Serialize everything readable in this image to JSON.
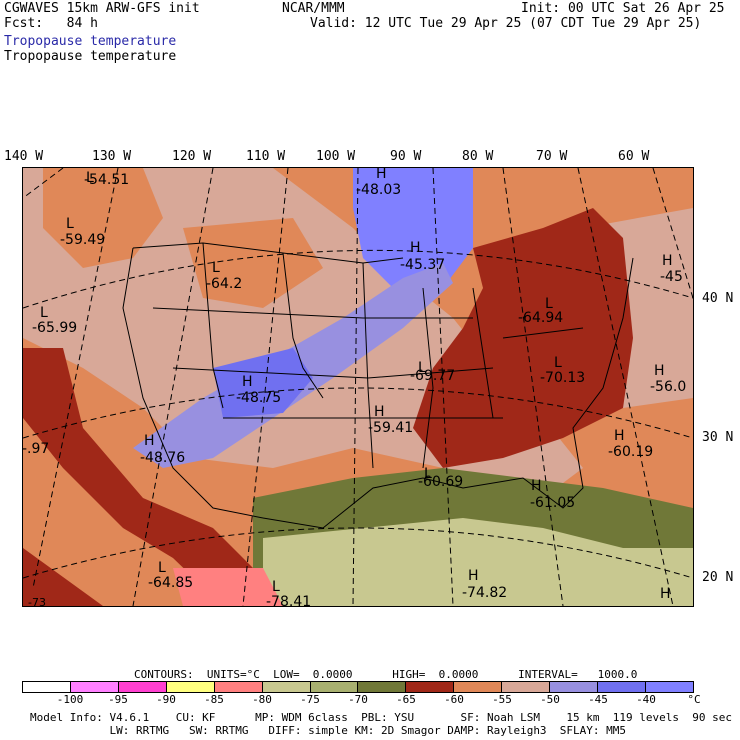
{
  "header": {
    "model": "CGWAVES 15km ARW-GFS init",
    "forecast": "Fcst:   84 h",
    "org": "NCAR/MMM",
    "init": "Init: 00 UTC Sat 26 Apr 25",
    "valid": "Valid: 12 UTC Tue 29 Apr 25 (07 CDT Tue 29 Apr 25)",
    "field_title_1": "Tropopause temperature",
    "field_title_2": "Tropopause temperature"
  },
  "longitude_labels": [
    "140 W",
    "130 W",
    "120 W",
    "110 W",
    "100 W",
    "90 W",
    "80 W",
    "70 W",
    "60 W"
  ],
  "latitude_labels": [
    "40 N",
    "30 N",
    "20 N"
  ],
  "map_labels": [
    {
      "letter": "L",
      "value": "-54.51"
    },
    {
      "letter": "H",
      "value": "-48.03"
    },
    {
      "letter": "L",
      "value": "-59.49"
    },
    {
      "letter": "L",
      "value": "-64.2"
    },
    {
      "letter": "H",
      "value": "-45.37"
    },
    {
      "letter": "H",
      "value": "-45"
    },
    {
      "letter": "L",
      "value": "-65.99"
    },
    {
      "letter": "L",
      "value": "-64.94"
    },
    {
      "letter": "L",
      "value": "-69.77"
    },
    {
      "letter": "L",
      "value": "-70.13"
    },
    {
      "letter": "H",
      "value": "-56.0"
    },
    {
      "letter": "H",
      "value": "-48.75"
    },
    {
      "letter": "H",
      "value": "-59.41"
    },
    {
      "letter": "H",
      "value": "-48.76"
    },
    {
      "letter": "",
      "value": "-.97"
    },
    {
      "letter": "H",
      "value": "-60.19"
    },
    {
      "letter": "L",
      "value": "-60.69"
    },
    {
      "letter": "H",
      "value": "-61.05"
    },
    {
      "letter": "L",
      "value": "-64.85"
    },
    {
      "letter": "L",
      "value": "-78.41"
    },
    {
      "letter": "H",
      "value": "-74.82"
    },
    {
      "letter": "",
      "value": "-73"
    },
    {
      "letter": "H",
      "value": ""
    }
  ],
  "contours_line": "CONTOURS:  UNITS=°C  LOW=  0.0000      HIGH=  0.0000      INTERVAL=   1000.0",
  "colorbar": {
    "colors": [
      "#ffffff",
      "#ff80ff",
      "#ff40d0",
      "#ffff80",
      "#ff8080",
      "#c8c890",
      "#a8b070",
      "#707838",
      "#a02818",
      "#e08858",
      "#d8a898",
      "#9890e0",
      "#7070f0",
      "#8080ff"
    ],
    "tick_labels": [
      "-100",
      "-95",
      "-90",
      "-85",
      "-80",
      "-75",
      "-70",
      "-65",
      "-60",
      "-55",
      "-50",
      "-45",
      "-40",
      "°C"
    ]
  },
  "footer": {
    "line1": "Model Info: V4.6.1    CU: KF      MP: WDM 6class  PBL: YSU       SF: Noah LSM    15 km  119 levels  90 sec",
    "line2": "            LW: RRTMG   SW: RRTMG   DIFF: simple KM: 2D Smagor DAMP: Rayleigh3  SFLAY: MM5"
  },
  "colors": {
    "very_cold": "#a8b070",
    "olive": "#707838",
    "dark_red": "#a02818",
    "orange": "#e08858",
    "pink": "#d8a898",
    "lavender": "#9890e0",
    "blue": "#8080ff"
  }
}
